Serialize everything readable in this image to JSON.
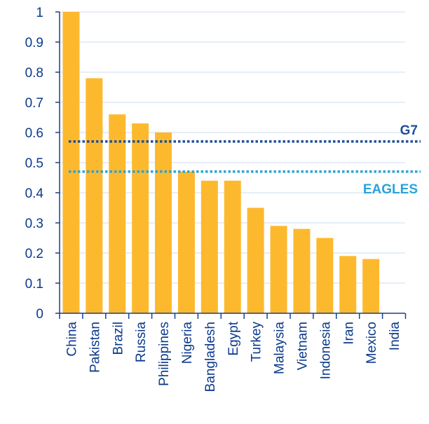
{
  "chart_data": {
    "type": "bar",
    "title": "",
    "xlabel": "",
    "ylabel": "",
    "ylim": [
      0,
      1
    ],
    "yticks": [
      "0",
      "0.1",
      "0.2",
      "0.3",
      "0.4",
      "0.5",
      "0.6",
      "0.7",
      "0.8",
      "0.9",
      "1"
    ],
    "grid": true,
    "categories": [
      "China",
      "Pakistan",
      "Brazil",
      "Russia",
      "Philippines",
      "Nigeria",
      "Bangladesh",
      "Egypt",
      "Turkey",
      "Malaysia",
      "Vietnam",
      "Indonesia",
      "Iran",
      "Mexico",
      "India"
    ],
    "values": [
      1.0,
      0.78,
      0.66,
      0.63,
      0.6,
      0.47,
      0.44,
      0.44,
      0.35,
      0.29,
      0.28,
      0.25,
      0.19,
      0.18,
      0.0
    ],
    "reference_lines": [
      {
        "label": "G7",
        "value": 0.57,
        "color": "#1F4E9C"
      },
      {
        "label": "EAGLES",
        "value": 0.47,
        "color": "#2AA3D8"
      }
    ],
    "colors": {
      "bar": "#FDB92E",
      "text": "#0B3A8C",
      "grid": "#CDDDF0",
      "axis": "#1B3F8B"
    }
  }
}
